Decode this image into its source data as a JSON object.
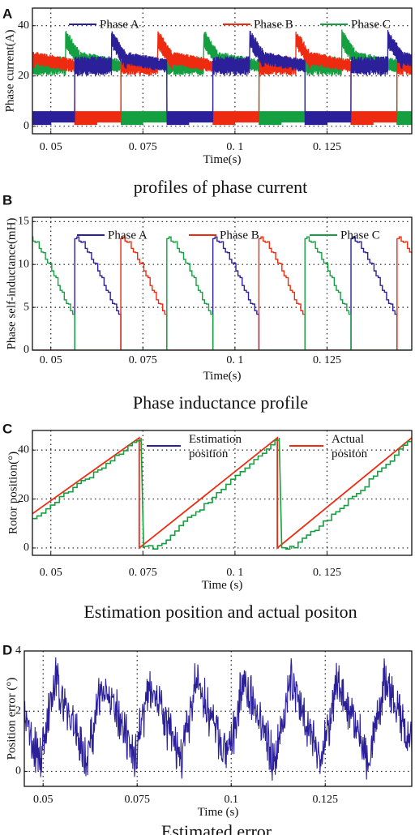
{
  "panels": [
    {
      "label": "A",
      "caption": "profiles of phase current",
      "chart_data": {
        "type": "line",
        "xlabel": "Time(s)",
        "ylabel": "Phase current(A)",
        "xlim": [
          0.045,
          0.148
        ],
        "ylim": [
          -3,
          47
        ],
        "xticks": [
          0.05,
          0.075,
          0.1,
          0.125
        ],
        "xtick_labels": [
          "0. 05",
          "0. 075",
          "0. 1",
          "0. 125"
        ],
        "yticks": [
          0,
          20,
          40
        ],
        "ytick_labels": [
          "0",
          "20",
          "40"
        ],
        "grid": true,
        "legend_position": "top",
        "period": 0.0375,
        "series": [
          {
            "name": "Phase A",
            "color": "#2b1f9a",
            "phase_offset": 0.0
          },
          {
            "name": "Phase B",
            "color": "#ee2b10",
            "phase_offset": 0.0125
          },
          {
            "name": "Phase C",
            "color": "#14a040",
            "phase_offset": 0.025
          }
        ],
        "cycle_shape": {
          "segments": [
            [
              0.0,
              0.01,
              24,
              24,
              3.5
            ],
            [
              0.01,
              0.014,
              35,
              26,
              3.5
            ],
            [
              0.014,
              0.025,
              27,
              24,
              2.5
            ],
            [
              0.025,
              0.0375,
              6,
              6,
              0.0
            ]
          ]
        }
      }
    },
    {
      "label": "B",
      "caption": "Phase inductance profile",
      "chart_data": {
        "type": "line",
        "xlabel": "Time(s)",
        "ylabel": "Phase self-inductance(mH)",
        "xlim": [
          0.045,
          0.148
        ],
        "ylim": [
          0,
          15.5
        ],
        "xticks": [
          0.05,
          0.075,
          0.1,
          0.125
        ],
        "xtick_labels": [
          "0. 05",
          "0. 075",
          "0. 1",
          "0. 125"
        ],
        "yticks": [
          0,
          5,
          10,
          15
        ],
        "ytick_labels": [
          "0",
          "5",
          "10",
          "15"
        ],
        "grid": true,
        "legend_position": "top",
        "period": 0.0375,
        "pulse_width": 0.0125,
        "series": [
          {
            "name": "Phase A",
            "color": "#2b1f9a",
            "rise_times": [
              0.0565,
              0.094,
              0.1315
            ]
          },
          {
            "name": "Phase B",
            "color": "#ee2b10",
            "rise_times": [
              0.069,
              0.1065,
              0.144
            ]
          },
          {
            "name": "Phase C",
            "color": "#14a040",
            "rise_times": [
              0.044,
              0.0815,
              0.119
            ]
          }
        ],
        "pulse_shape": [
          [
            0.0,
            13.0
          ],
          [
            0.002,
            12.5
          ],
          [
            0.006,
            9.5
          ],
          [
            0.0095,
            6.0
          ],
          [
            0.0115,
            4.5
          ],
          [
            0.0125,
            3.8
          ]
        ]
      }
    },
    {
      "label": "C",
      "caption": "Estimation position and actual positon",
      "chart_data": {
        "type": "line",
        "xlabel": "Time  (s)",
        "ylabel": "Rotor position(°)",
        "xlim": [
          0.045,
          0.148
        ],
        "ylim": [
          -3,
          48
        ],
        "xticks": [
          0.05,
          0.075,
          0.1,
          0.125
        ],
        "xtick_labels": [
          "0. 05",
          "0. 075",
          "0. 1",
          "0. 125"
        ],
        "yticks": [
          0,
          20,
          40
        ],
        "ytick_labels": [
          "0",
          "20",
          "40"
        ],
        "grid": true,
        "legend_position": "top",
        "series": [
          {
            "name": "Estimation position",
            "color": "#2b1f9a",
            "legend_line_color": "#2b1f9a",
            "plot_color": "#14a040",
            "points": [
              [
                0.045,
                12
              ],
              [
                0.056,
                24
              ],
              [
                0.065,
                34
              ],
              [
                0.0745,
                45
              ],
              [
                0.0752,
                0
              ],
              [
                0.079,
                0
              ],
              [
                0.086,
                10
              ],
              [
                0.095,
                22
              ],
              [
                0.104,
                34
              ],
              [
                0.112,
                45
              ],
              [
                0.1127,
                0
              ],
              [
                0.116,
                0
              ],
              [
                0.124,
                10
              ],
              [
                0.133,
                22
              ],
              [
                0.141,
                34
              ],
              [
                0.148,
                45
              ]
            ]
          },
          {
            "name": "Actual positon",
            "color": "#ee2b10",
            "points": [
              [
                0.045,
                14
              ],
              [
                0.074,
                45
              ],
              [
                0.074,
                0
              ],
              [
                0.1115,
                45
              ],
              [
                0.1115,
                0
              ],
              [
                0.148,
                45
              ]
            ]
          }
        ]
      }
    },
    {
      "label": "D",
      "caption": "Estimated error",
      "chart_data": {
        "type": "line",
        "xlabel": "Time  (s)",
        "ylabel": "Position error  (°)",
        "xlim": [
          0.045,
          0.148
        ],
        "ylim": [
          -0.5,
          4
        ],
        "xticks": [
          0.05,
          0.075,
          0.1,
          0.125
        ],
        "xtick_labels": [
          "0.05",
          "0.075",
          "0.1",
          "0.125"
        ],
        "yticks": [
          0,
          2,
          4
        ],
        "ytick_labels": [
          "0",
          "2",
          "4"
        ],
        "grid": true,
        "series": [
          {
            "name": "",
            "color": "#2b1f9a",
            "mean_period": 0.0125,
            "mean_range": [
              0.0,
              3.0
            ],
            "noise": 0.6
          }
        ]
      }
    }
  ]
}
